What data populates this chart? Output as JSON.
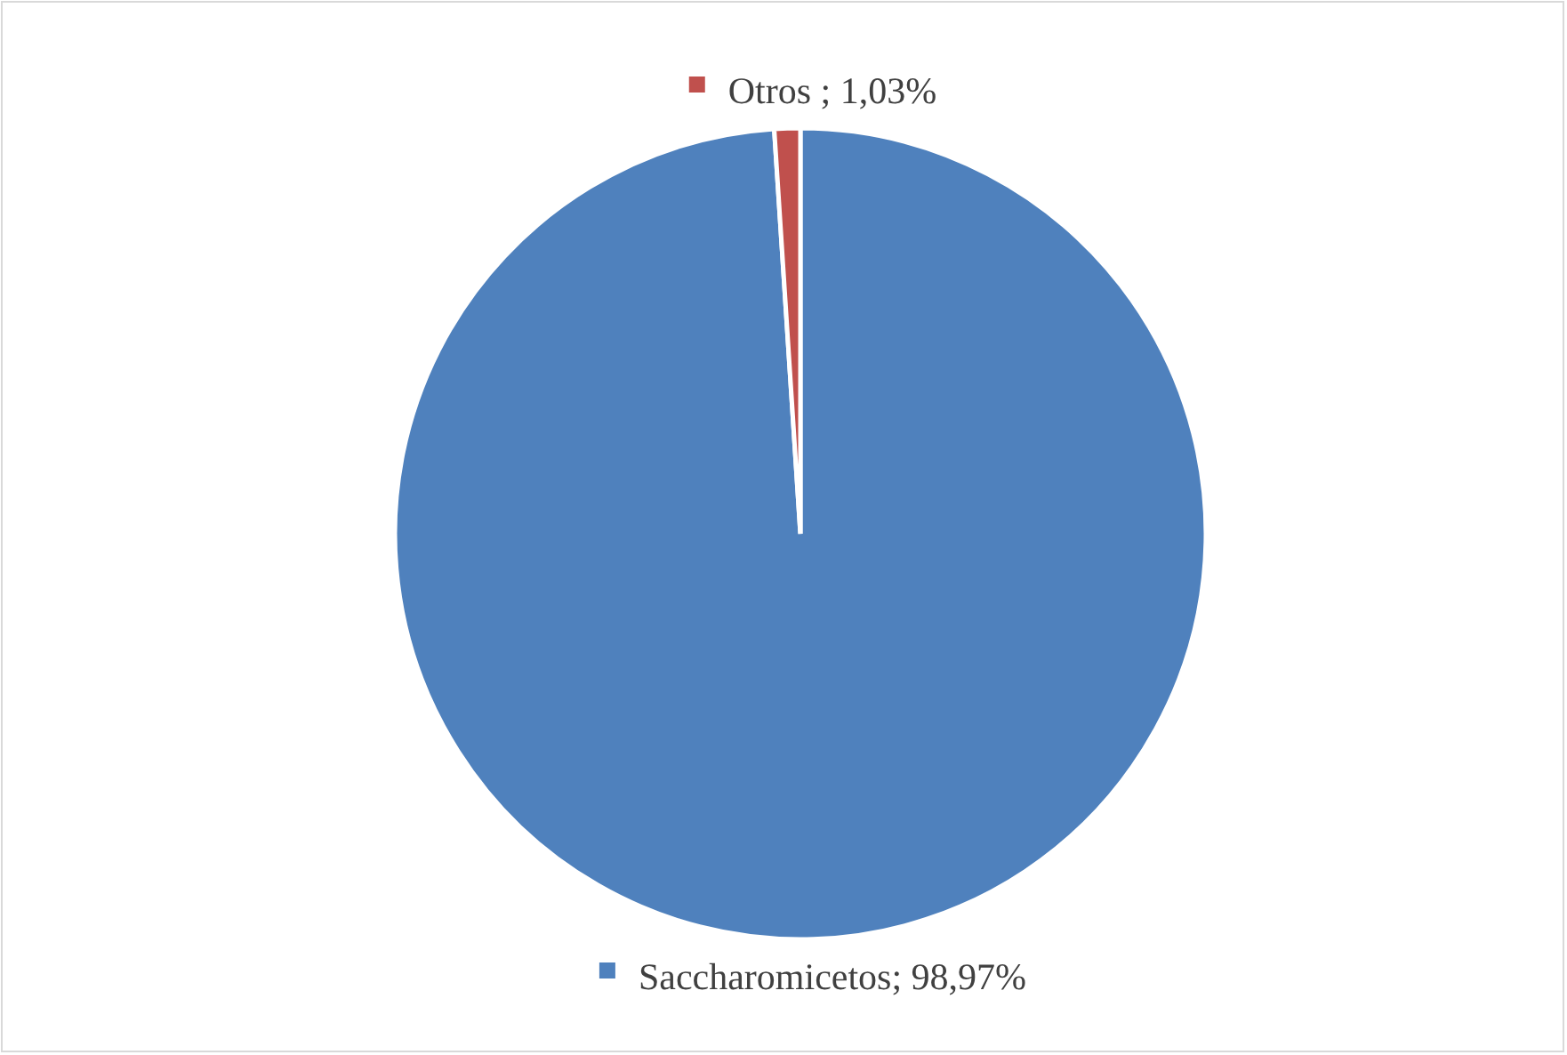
{
  "chart_data": {
    "type": "pie",
    "categories": [
      "Saccharomicetos",
      "Otros"
    ],
    "values": [
      98.97,
      1.03
    ],
    "colors": [
      "#4f81bd",
      "#c0504d"
    ],
    "value_labels": [
      "; 98,97%",
      " ; 1,03%"
    ],
    "legend": "top"
  }
}
